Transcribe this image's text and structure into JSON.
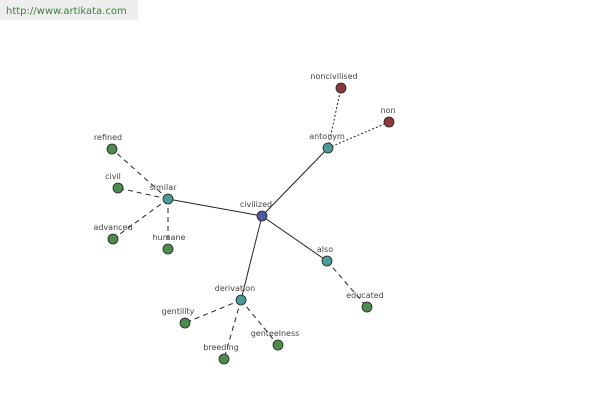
{
  "header": {
    "url": "http://www.artikata.com"
  },
  "nodes": [
    {
      "label": "civilized"
    },
    {
      "label": "similar"
    },
    {
      "label": "antonym"
    },
    {
      "label": "also"
    },
    {
      "label": "derivation"
    },
    {
      "label": "noncivilised"
    },
    {
      "label": "non"
    },
    {
      "label": "refined"
    },
    {
      "label": "civil"
    },
    {
      "label": "advanced"
    },
    {
      "label": "humane"
    },
    {
      "label": "educated"
    },
    {
      "label": "gentility"
    },
    {
      "label": "breeding"
    },
    {
      "label": "genteelness"
    }
  ]
}
